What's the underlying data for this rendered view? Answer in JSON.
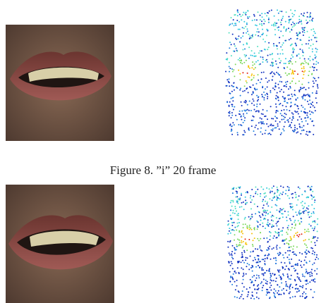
{
  "figure": {
    "caption": "Figure 8. ”i” 20 frame"
  }
}
